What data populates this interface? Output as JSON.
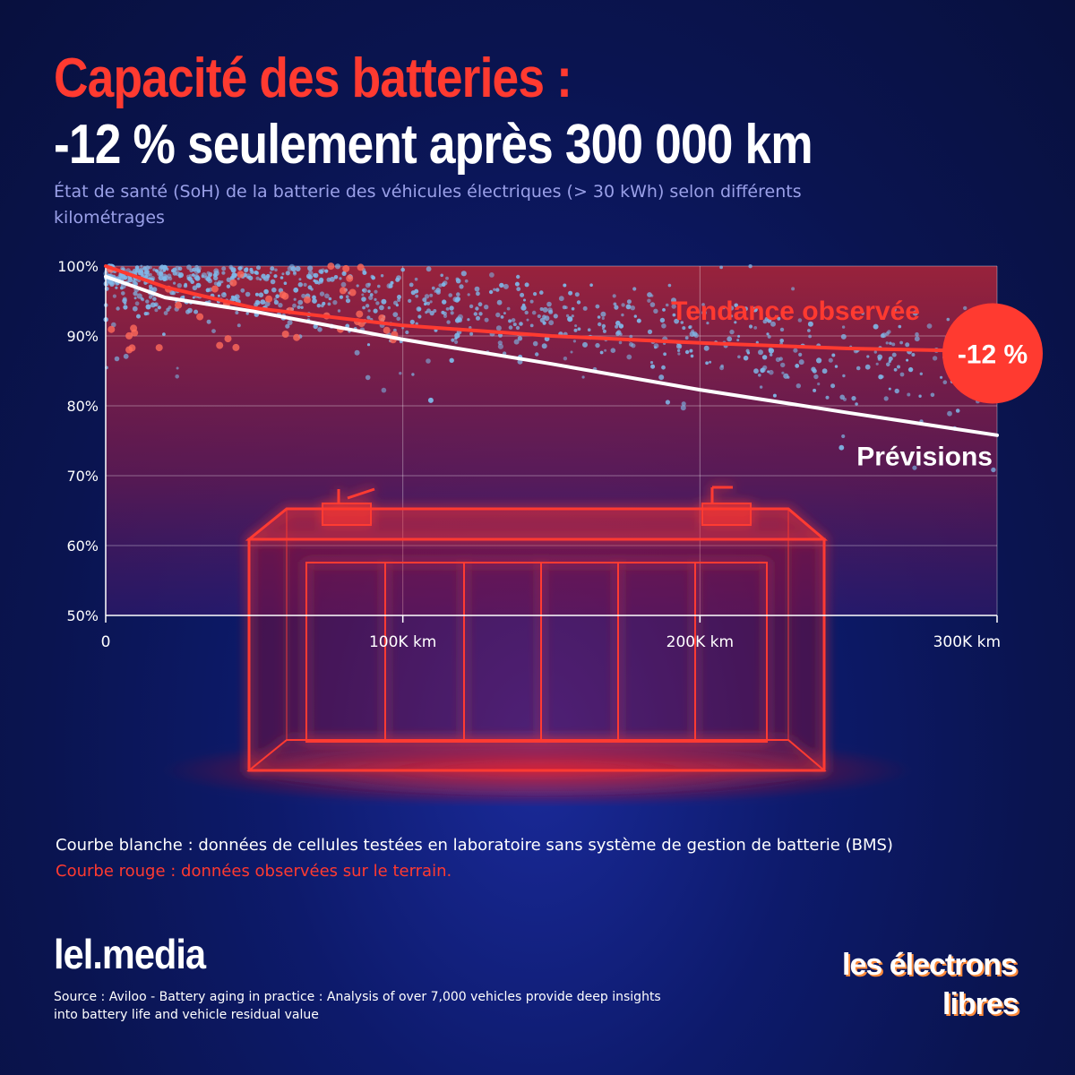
{
  "header": {
    "title_line1": "Capacité des batteries :",
    "title_line2": "-12 % seulement après 300 000 km",
    "subtitle": "État de santé (SoH) de la batterie des véhicules électriques (> 30 kWh) selon différents kilométrages"
  },
  "chart_data": {
    "type": "line",
    "x_ticks": [
      {
        "value": 0,
        "label": "0"
      },
      {
        "value": 100000,
        "label": "100K km"
      },
      {
        "value": 200000,
        "label": "200K km"
      },
      {
        "value": 300000,
        "label": "300K km"
      }
    ],
    "y_ticks": [
      {
        "value": 100,
        "label": "100%"
      },
      {
        "value": 90,
        "label": "90%"
      },
      {
        "value": 80,
        "label": "80%"
      },
      {
        "value": 70,
        "label": "70%"
      },
      {
        "value": 60,
        "label": "60%"
      },
      {
        "value": 50,
        "label": "50%"
      }
    ],
    "xlim": [
      0,
      300000
    ],
    "ylim": [
      50,
      100
    ],
    "grid": true,
    "series": [
      {
        "name": "Tendance observée",
        "color": "#ff3a30",
        "points": [
          [
            0,
            100
          ],
          [
            20000,
            97
          ],
          [
            50000,
            94
          ],
          [
            100000,
            91.5
          ],
          [
            150000,
            90
          ],
          [
            200000,
            89
          ],
          [
            250000,
            88.2
          ],
          [
            300000,
            87.8
          ]
        ]
      },
      {
        "name": "Prévisions",
        "color": "#ffffff",
        "points": [
          [
            0,
            98.5
          ],
          [
            10000,
            97
          ],
          [
            20000,
            95.5
          ],
          [
            50000,
            93.5
          ],
          [
            100000,
            89.5
          ],
          [
            150000,
            86
          ],
          [
            200000,
            82.3
          ],
          [
            250000,
            79
          ],
          [
            300000,
            75.8
          ]
        ]
      }
    ],
    "badge": {
      "label": "-12 %",
      "color": "#ff3a30"
    },
    "scatter_note": "nuage de points : véhicules mesurés (bleu) et points de terrain (rouge)"
  },
  "notes": {
    "white": "Courbe blanche : données de cellules testées en laboratoire sans système de gestion de batterie (BMS)",
    "red": "Courbe rouge : données observées sur le terrain."
  },
  "footer": {
    "brand": "lel.media",
    "source": "Source : Aviloo - Battery aging in practice : Analysis of over 7,000 vehicles provide deep insights into battery life and vehicle residual value",
    "logo_line1": "les électrons",
    "logo_line2": "libres"
  },
  "colors": {
    "accent_red": "#ff3a30",
    "background": "#0d1a6b",
    "subtitle": "#9aa0e8"
  }
}
